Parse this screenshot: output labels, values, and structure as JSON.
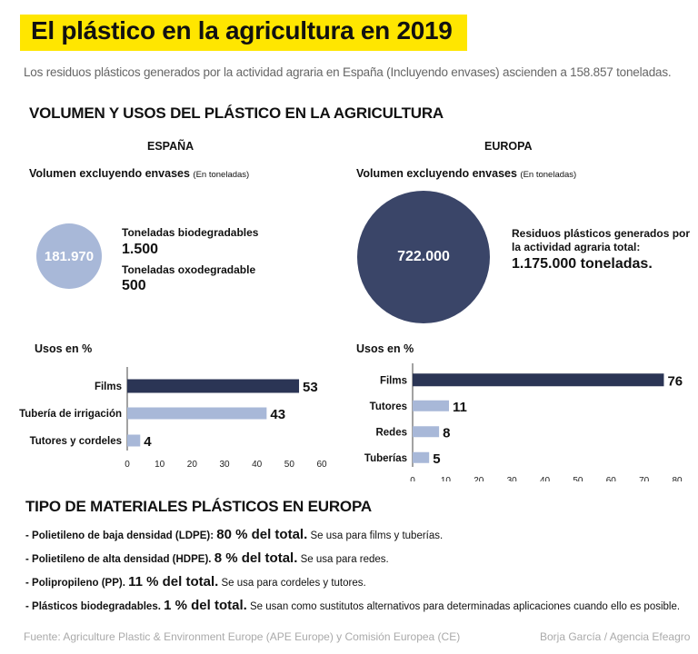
{
  "title": "El plástico en la agricultura en 2019",
  "subtitle": "Los residuos plásticos generados por la actividad agraria en España (Incluyendo envases) ascienden a 158.857 toneladas.",
  "section1_title": "VOLUMEN Y USOS DEL PLÁSTICO EN LA AGRICULTURA",
  "colors": {
    "title_bg": "#ffe600",
    "spain": "#a8b8d8",
    "europe_bar": "#2b3555",
    "europe_circle": "#3a4568"
  },
  "spain": {
    "region": "ESPAÑA",
    "volume_label": "Volumen excluyendo envases",
    "volume_unit": "(En toneladas)",
    "circle_value": "181.970",
    "biodeg_label": "Toneladas biodegradables",
    "biodeg_value": "1.500",
    "oxodeg_label": "Toneladas oxodegradable",
    "oxodeg_value": "500",
    "uses_label": "Usos en %"
  },
  "europe": {
    "region": "EUROPA",
    "volume_label": "Volumen excluyendo envases",
    "volume_unit": "(En toneladas)",
    "circle_value": "722.000",
    "total_label_1": "Residuos plásticos generados por",
    "total_label_2": "la actividad agraria total:",
    "total_value": "1.175.000 toneladas.",
    "uses_label": "Usos en %"
  },
  "chart_data": [
    {
      "type": "bar",
      "orientation": "horizontal",
      "categories": [
        "Films",
        "Tubería de irrigación",
        "Tutores y cordeles"
      ],
      "values": [
        53,
        43,
        4
      ],
      "highlight_index": 0,
      "xlim": [
        0,
        60
      ],
      "xticks": [
        0,
        10,
        20,
        30,
        40,
        50,
        60
      ]
    },
    {
      "type": "bar",
      "orientation": "horizontal",
      "categories": [
        "Films",
        "Tutores",
        "Redes",
        "Tuberías"
      ],
      "values": [
        76,
        11,
        8,
        5
      ],
      "highlight_index": 0,
      "xlim": [
        0,
        80
      ],
      "xticks": [
        0,
        10,
        20,
        30,
        40,
        50,
        60,
        70,
        80
      ]
    }
  ],
  "section2_title": "TIPO DE MATERIALES PLÁSTICOS EN EUROPA",
  "materials": [
    {
      "dash": "- ",
      "name": "Polietileno de baja densidad (LDPE):",
      "pct": "80 % del total.",
      "desc": "Se usa para films y tuberías."
    },
    {
      "dash": "- ",
      "name": "Polietileno de alta densidad (HDPE).",
      "pct": "8 % del total.",
      "desc": "Se usa para redes."
    },
    {
      "dash": "- ",
      "name": "Polipropileno (PP).",
      "pct": "11 % del total.",
      "desc": "Se usa para cordeles y tutores."
    },
    {
      "dash": "- ",
      "name": "Plásticos biodegradables.",
      "pct": "1 % del total.",
      "desc": "Se usan como sustitutos alternativos para determinadas aplicaciones cuando ello es posible."
    }
  ],
  "footer_source": "Fuente: Agriculture Plastic & Environment Europe (APE Europe) y Comisión Europea (CE)",
  "footer_credit": "Borja García / Agencia Efeagro"
}
